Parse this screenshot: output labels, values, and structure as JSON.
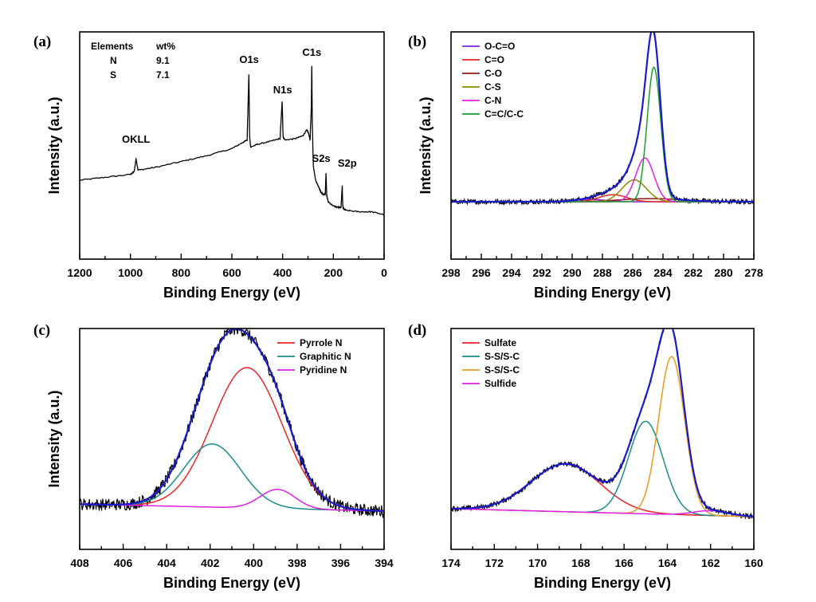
{
  "chart_data": [
    {
      "panel": "(a)",
      "type": "line",
      "xlabel": "Binding Energy (eV)",
      "ylabel": "Intensity (a.u.)",
      "xlim": [
        1200,
        0
      ],
      "xticks": [
        1200,
        1000,
        800,
        600,
        400,
        200,
        0
      ],
      "table": {
        "headers": [
          "Elements",
          "wt%"
        ],
        "rows": [
          [
            "N",
            "9.1"
          ],
          [
            "S",
            "7.1"
          ]
        ]
      },
      "peak_labels": [
        {
          "text": "OKLL",
          "x": 978
        },
        {
          "text": "O1s",
          "x": 532
        },
        {
          "text": "N1s",
          "x": 400
        },
        {
          "text": "C1s",
          "x": 285
        },
        {
          "text": "S2s",
          "x": 229
        },
        {
          "text": "S2p",
          "x": 164
        }
      ],
      "series": [
        {
          "color": "#000000",
          "x": [
            1200,
            1100,
            1000,
            985,
            978,
            970,
            900,
            800,
            700,
            600,
            560,
            540,
            533,
            530,
            526,
            500,
            450,
            410,
            402,
            398,
            390,
            350,
            320,
            305,
            298,
            292,
            287,
            285,
            283,
            279,
            270,
            260,
            250,
            240,
            232,
            229,
            226,
            220,
            200,
            180,
            170,
            165,
            163,
            160,
            150,
            100,
            50,
            0
          ],
          "y": [
            0.2,
            0.22,
            0.24,
            0.26,
            0.35,
            0.27,
            0.29,
            0.33,
            0.37,
            0.42,
            0.46,
            0.48,
            0.94,
            0.5,
            0.43,
            0.45,
            0.47,
            0.49,
            0.75,
            0.5,
            0.48,
            0.49,
            0.51,
            0.55,
            0.53,
            0.48,
            0.7,
            1.0,
            0.6,
            0.3,
            0.2,
            0.16,
            0.12,
            0.1,
            0.1,
            0.25,
            0.09,
            0.05,
            0.02,
            0.01,
            0.01,
            0.16,
            0.02,
            0.0,
            -0.01,
            -0.02,
            -0.02,
            -0.04
          ]
        }
      ]
    },
    {
      "panel": "(b)",
      "type": "line",
      "xlabel": "Binding Energy (eV)",
      "ylabel": "Intensity (a.u.)",
      "xlim": [
        298,
        278
      ],
      "xticks": [
        298,
        296,
        294,
        292,
        290,
        288,
        286,
        284,
        282,
        280,
        278
      ],
      "components": [
        {
          "name": "O-C=O",
          "color": "#7b2ad6",
          "center": 288.8,
          "height": 0.015,
          "width": 1.0
        },
        {
          "name": "C=O",
          "color": "#e8252a",
          "center": 287.3,
          "height": 0.045,
          "width": 0.9
        },
        {
          "name": "C-O",
          "color": "#8b1a1a",
          "center": 284.8,
          "height": 0.02,
          "width": 2.0
        },
        {
          "name": "C-S",
          "color": "#8c8c00",
          "center": 285.9,
          "height": 0.14,
          "width": 0.8
        },
        {
          "name": "C-N",
          "color": "#e020e0",
          "center": 285.2,
          "height": 0.28,
          "width": 0.6
        },
        {
          "name": "C=C/C-C",
          "color": "#1a9e2e",
          "center": 284.6,
          "height": 0.86,
          "width": 0.45
        }
      ],
      "envelope_color": "#1a1acc",
      "raw_color": "#000000",
      "baseline": 0.0
    },
    {
      "panel": "(c)",
      "type": "line",
      "xlabel": "Binding Energy (eV)",
      "ylabel": "Intensity (a.u.)",
      "xlim": [
        408,
        394
      ],
      "xticks": [
        408,
        406,
        404,
        402,
        400,
        398,
        396,
        394
      ],
      "components": [
        {
          "name": "Pyrrole N",
          "color": "#e8252a",
          "center": 400.3,
          "height": 0.8,
          "width": 1.6
        },
        {
          "name": "Graphitic N",
          "color": "#1a8c8c",
          "center": 401.9,
          "height": 0.36,
          "width": 1.3
        },
        {
          "name": "Pyridine N",
          "color": "#e020e0",
          "center": 398.9,
          "height": 0.11,
          "width": 0.8
        }
      ],
      "envelope_color": "#1a1acc",
      "raw_color": "#000000",
      "baseline_start": 0.04,
      "baseline_end": 0.0
    },
    {
      "panel": "(d)",
      "type": "line",
      "xlabel": "Binding Energy (eV)",
      "ylabel": "",
      "xlim": [
        174,
        160
      ],
      "xticks": [
        174,
        172,
        170,
        168,
        166,
        164,
        162,
        160
      ],
      "components": [
        {
          "name": "Sulfate",
          "color": "#e8252a",
          "center": 168.7,
          "height": 0.3,
          "width": 1.6
        },
        {
          "name": "S-S/S-C",
          "color": "#1a8c8c",
          "center": 165.0,
          "height": 0.58,
          "width": 0.8
        },
        {
          "name": "S-S/S-C",
          "color": "#e89a1a",
          "center": 163.8,
          "height": 0.99,
          "width": 0.6
        },
        {
          "name": "Sulfide",
          "color": "#e020e0",
          "center": 162.0,
          "height": 0.03,
          "width": 0.8
        }
      ],
      "envelope_color": "#1a1acc",
      "raw_color": "#000000",
      "baseline_start": 0.02,
      "baseline_end": -0.03
    }
  ]
}
